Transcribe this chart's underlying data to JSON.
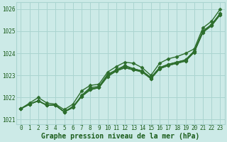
{
  "background_color": "#cceae7",
  "grid_color": "#aad4d0",
  "line_color": "#2d6e2d",
  "xlabel": "Graphe pression niveau de la mer (hPa)",
  "xlim": [
    -0.5,
    23.5
  ],
  "ylim": [
    1020.8,
    1026.3
  ],
  "yticks": [
    1021,
    1022,
    1023,
    1024,
    1025,
    1026
  ],
  "xticks": [
    0,
    1,
    2,
    3,
    4,
    5,
    6,
    7,
    8,
    9,
    10,
    11,
    12,
    13,
    14,
    15,
    16,
    17,
    18,
    19,
    20,
    21,
    22,
    23
  ],
  "series": [
    [
      1021.5,
      1021.7,
      1021.85,
      1021.65,
      1021.65,
      1021.35,
      1021.55,
      1022.05,
      1022.35,
      1022.45,
      1022.95,
      1023.2,
      1023.35,
      1023.25,
      1023.15,
      1022.85,
      1023.3,
      1023.45,
      1023.55,
      1023.65,
      1024.05,
      1024.95,
      1025.25,
      1025.75
    ],
    [
      1021.5,
      1021.7,
      1021.85,
      1021.65,
      1021.65,
      1021.35,
      1021.55,
      1022.05,
      1022.35,
      1022.45,
      1022.95,
      1023.2,
      1023.35,
      1023.25,
      1023.2,
      1022.85,
      1023.3,
      1023.45,
      1023.55,
      1023.65,
      1024.05,
      1024.95,
      1025.25,
      1025.75
    ],
    [
      1021.5,
      1021.7,
      1021.85,
      1021.65,
      1021.65,
      1021.35,
      1021.6,
      1022.05,
      1022.4,
      1022.45,
      1023.0,
      1023.25,
      1023.4,
      1023.3,
      1023.2,
      1022.9,
      1023.35,
      1023.5,
      1023.6,
      1023.7,
      1024.1,
      1025.0,
      1025.3,
      1025.8
    ],
    [
      1021.5,
      1021.7,
      1021.85,
      1021.65,
      1021.65,
      1021.35,
      1021.55,
      1022.1,
      1022.45,
      1022.5,
      1023.05,
      1023.25,
      1023.45,
      1023.3,
      1023.2,
      1022.9,
      1023.35,
      1023.5,
      1023.6,
      1023.7,
      1024.1,
      1025.0,
      1025.3,
      1025.8
    ],
    [
      1021.5,
      1021.75,
      1022.0,
      1021.75,
      1021.7,
      1021.45,
      1021.7,
      1022.3,
      1022.55,
      1022.6,
      1023.15,
      1023.4,
      1023.6,
      1023.55,
      1023.35,
      1023.0,
      1023.55,
      1023.75,
      1023.85,
      1024.0,
      1024.2,
      1025.15,
      1025.45,
      1026.0
    ]
  ],
  "marker": "D",
  "markersize": 2.5,
  "linewidth": 1.0,
  "tick_fontsize": 5.5,
  "label_fontsize": 7.0,
  "font_color": "#1a5c1a"
}
